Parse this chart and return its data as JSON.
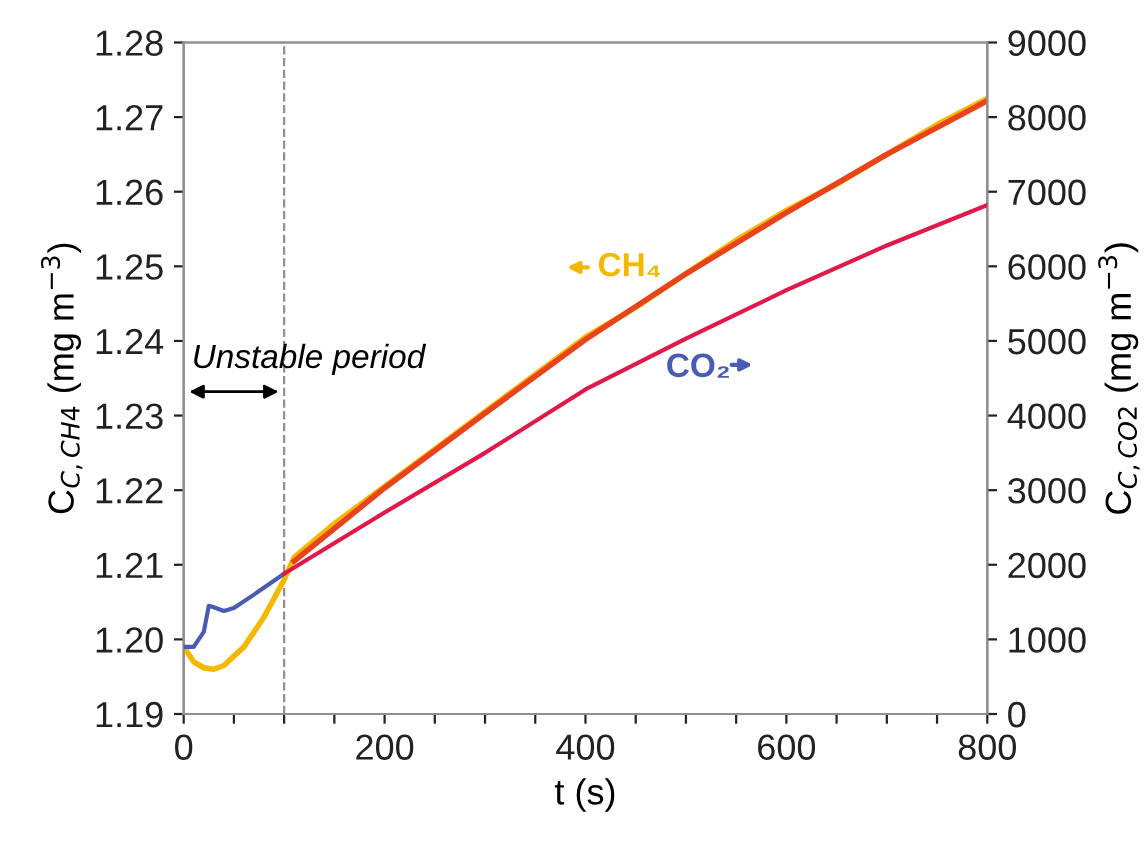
{
  "chart_data": {
    "type": "line",
    "xlabel": "t (s)",
    "ylabel": "C$_{C,CH4}$ (mg m$^{−3}$)",
    "y2label": "C$_{C,CO2}$ (mg m$^{−3}$)",
    "xlim": [
      0,
      800
    ],
    "xticks": [
      0,
      {
        "value": 50,
        "label": null
      },
      {
        "value": 100,
        "label": null
      },
      {
        "value": 150,
        "label": null
      },
      200,
      {
        "value": 250,
        "label": null
      },
      {
        "value": 300,
        "label": null
      },
      {
        "value": 350,
        "label": null
      },
      400,
      {
        "value": 450,
        "label": null
      },
      {
        "value": 500,
        "label": null
      },
      {
        "value": 550,
        "label": null
      },
      600,
      {
        "value": 650,
        "label": null
      },
      {
        "value": 700,
        "label": null
      },
      {
        "value": 750,
        "label": null
      },
      800
    ],
    "ylim": [
      1.19,
      1.28
    ],
    "yticks": [
      1.19,
      {
        "value": 1.2,
        "label": "1.20"
      },
      1.21,
      1.22,
      1.23,
      1.24,
      1.25,
      1.26,
      1.27,
      1.28
    ],
    "y2lim": [
      0,
      9000
    ],
    "y2ticks": [
      0,
      1000,
      2000,
      3000,
      4000,
      5000,
      6000,
      7000,
      8000,
      9000
    ],
    "grid": false,
    "marker": "none",
    "line_style": "solid",
    "series": [
      {
        "color": "#4a5bb5",
        "axis": "y2",
        "x": [
          0,
          10,
          20,
          25,
          30,
          40,
          50,
          70,
          100
        ],
        "values": [
          900,
          900,
          1100,
          1450,
          1430,
          1380,
          1420,
          1600,
          1880
        ]
      },
      {
        "color": "#f5b800",
        "x": [
          0,
          10,
          20,
          30,
          40,
          60,
          80,
          100,
          110,
          150,
          200,
          250,
          300,
          350,
          400,
          450,
          500,
          550,
          600,
          650,
          700,
          750,
          800
        ],
        "values": [
          1.199,
          1.197,
          1.1962,
          1.196,
          1.1965,
          1.199,
          1.203,
          1.208,
          1.211,
          1.2155,
          1.2205,
          1.2255,
          1.2305,
          1.2355,
          1.2405,
          1.2445,
          1.249,
          1.2535,
          1.2575,
          1.261,
          1.265,
          1.269,
          1.2725
        ]
      },
      {
        "color": "#e8431a",
        "x": [
          110,
          200,
          300,
          400,
          500,
          600,
          700,
          800
        ],
        "values": [
          1.2105,
          1.2203,
          1.2303,
          1.2402,
          1.249,
          1.2572,
          1.265,
          1.2722
        ]
      },
      {
        "color": "#e0194a",
        "axis": "y2",
        "x": [
          100,
          200,
          300,
          400,
          500,
          600,
          700,
          800
        ],
        "values": [
          1880,
          2700,
          3500,
          4350,
          5030,
          5680,
          6280,
          6820
        ]
      }
    ],
    "ref_lines": [
      {
        "axis": "x",
        "value": 100,
        "color": "#909090",
        "line_style": "dashed"
      }
    ],
    "annotations": [
      "Unstable period",
      "CH₄",
      "CO₂"
    ]
  }
}
